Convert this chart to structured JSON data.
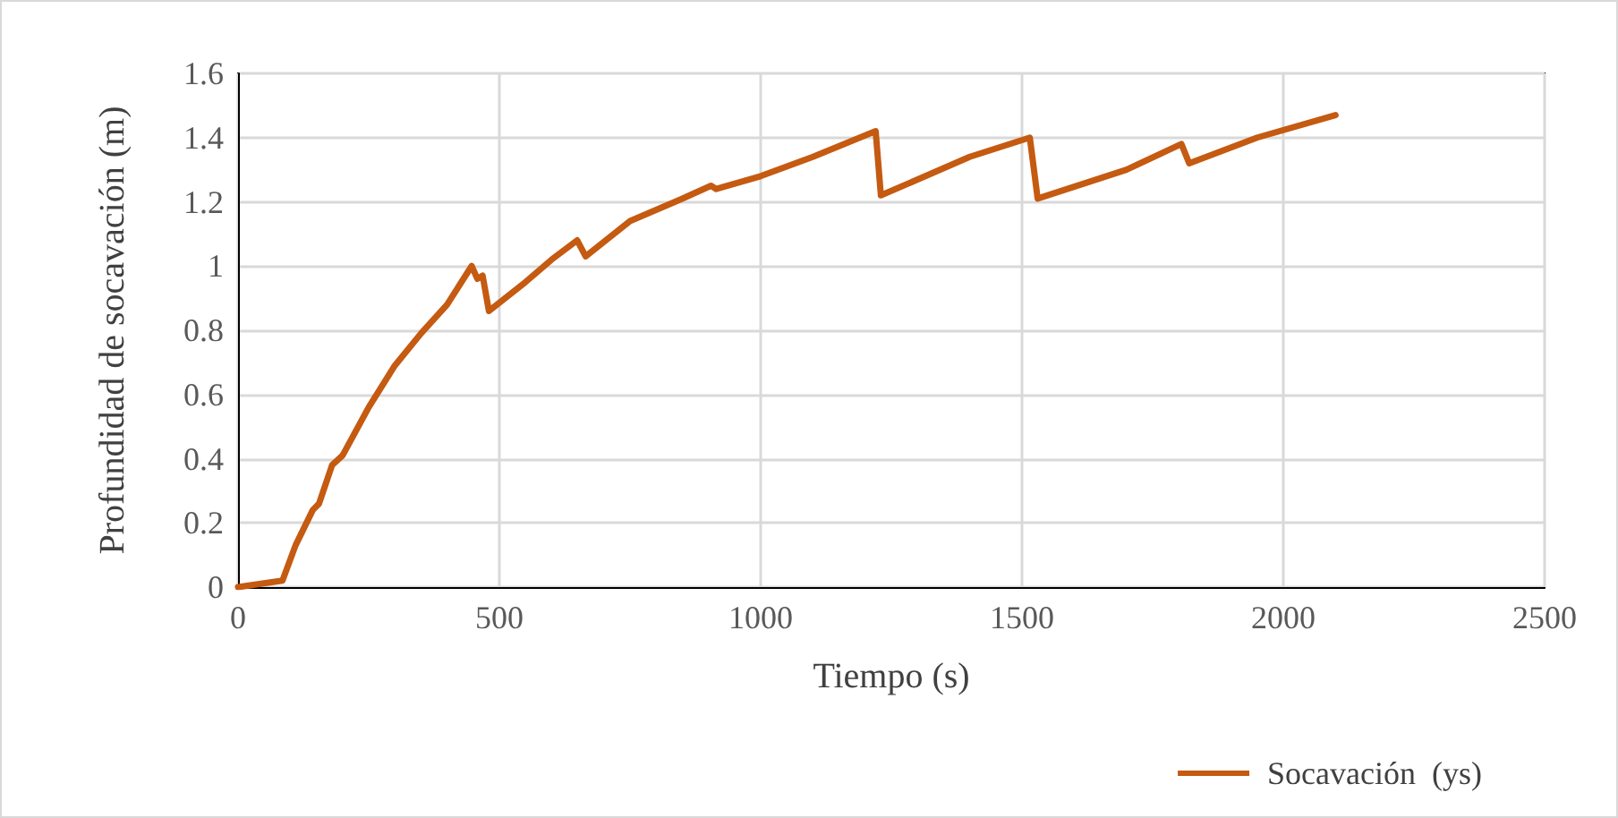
{
  "chart_data": {
    "type": "line",
    "xlabel": "Tiempo (s)",
    "ylabel": "Profundidad de socavación (m)",
    "xlim": [
      0,
      2500
    ],
    "xticks": [
      0,
      500,
      1000,
      1500,
      2000,
      2500
    ],
    "ylim": [
      0,
      1.6
    ],
    "yticks": [
      0,
      {
        "value": 0.2,
        "label": "0.2"
      },
      {
        "value": 0.4,
        "label": "0.4"
      },
      {
        "value": 0.6,
        "label": "0.6"
      },
      {
        "value": 0.8,
        "label": "0.8"
      },
      1,
      {
        "value": 1.2,
        "label": "1.2"
      },
      {
        "value": 1.4,
        "label": "1.4"
      },
      {
        "value": 1.6,
        "label": "1.6"
      }
    ],
    "grid": true,
    "legend": "bottom right",
    "marker": "none",
    "line_style": "solid",
    "series": [
      {
        "name": "Socavación  (ys)",
        "color": "#c55a11",
        "x": [
          0,
          85,
          110,
          143,
          155,
          180,
          200,
          250,
          300,
          350,
          400,
          447,
          458,
          468,
          480,
          550,
          600,
          649,
          665,
          750,
          850,
          905,
          915,
          1000,
          1100,
          1220,
          1230,
          1400,
          1515,
          1530,
          1700,
          1805,
          1820,
          1950,
          2100
        ],
        "values": [
          0,
          0.02,
          0.13,
          0.24,
          0.26,
          0.38,
          0.41,
          0.56,
          0.69,
          0.79,
          0.88,
          1.0,
          0.96,
          0.97,
          0.86,
          0.95,
          1.02,
          1.08,
          1.03,
          1.14,
          1.21,
          1.25,
          1.24,
          1.28,
          1.34,
          1.42,
          1.22,
          1.34,
          1.4,
          1.21,
          1.3,
          1.38,
          1.32,
          1.4,
          1.47
        ]
      }
    ]
  }
}
